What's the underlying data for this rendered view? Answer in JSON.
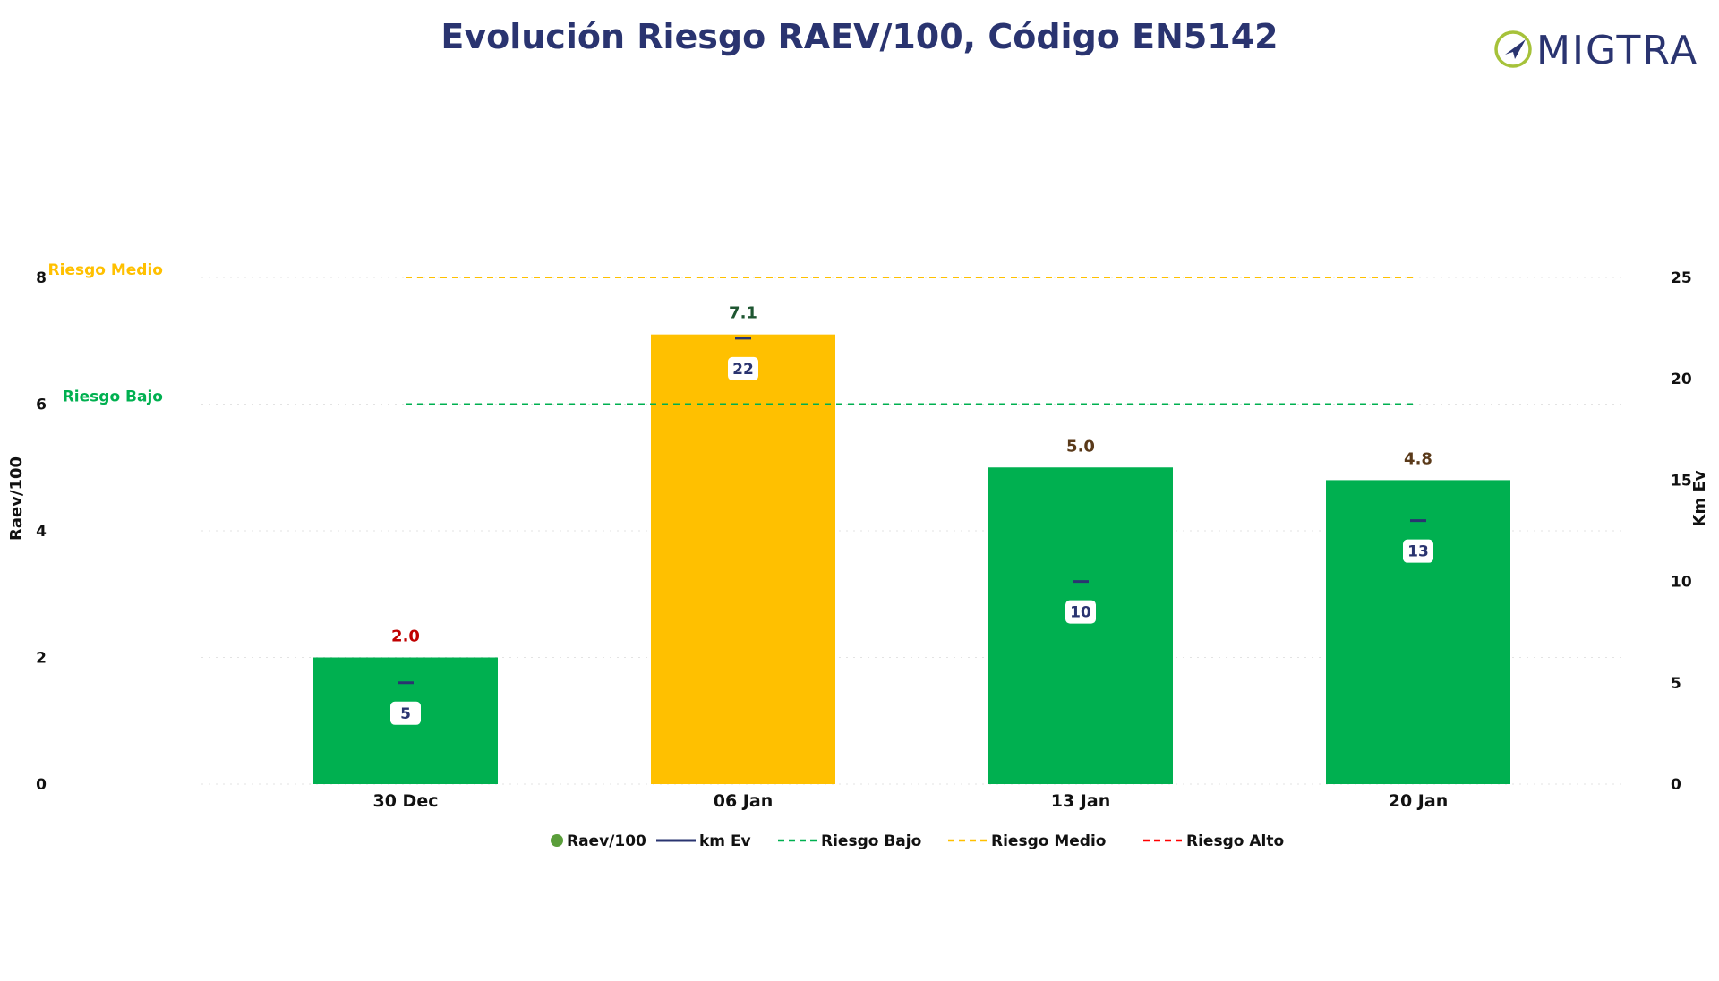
{
  "chart_data": {
    "type": "bar",
    "title": "Evolución Riesgo RAEV/100, Código EN5142",
    "categories": [
      "30 Dec",
      "06 Jan",
      "13 Jan",
      "20 Jan"
    ],
    "series": [
      {
        "name": "Raev/100",
        "axis": "left",
        "values": [
          2.0,
          7.1,
          5.0,
          4.8
        ],
        "labels": [
          "2.0",
          "7.1",
          "5.0",
          "4.8"
        ],
        "bar_colors": [
          "#00b050",
          "#ffc000",
          "#00b050",
          "#00b050"
        ],
        "label_colors": [
          "#c00000",
          "#1e5631",
          "#5a3a1a",
          "#5a3a1a"
        ]
      },
      {
        "name": "km Ev",
        "axis": "right",
        "values": [
          5,
          22,
          10,
          13
        ],
        "labels": [
          "5",
          "22",
          "10",
          "13"
        ],
        "color": "#2a3470"
      }
    ],
    "reference_lines": [
      {
        "name": "Riesgo Bajo",
        "value": 6,
        "color": "#00b050",
        "label": "Riesgo Bajo"
      },
      {
        "name": "Riesgo Medio",
        "value": 8,
        "color": "#ffc000",
        "label": "Riesgo Medio"
      }
    ],
    "ylabel": "Raev/100",
    "y2label": "Km Ev",
    "ylim": [
      0,
      8
    ],
    "y2lim": [
      0,
      25
    ],
    "yticks": [
      "0",
      "2",
      "4",
      "6",
      "8"
    ],
    "y2ticks": [
      "0",
      "5",
      "10",
      "15",
      "20",
      "25"
    ],
    "grid": true,
    "legend_position": "bottom",
    "legend": [
      {
        "label": "Raev/100",
        "kind": "dot",
        "color": "#5a9e3a"
      },
      {
        "label": "km Ev",
        "kind": "line",
        "color": "#2a3470"
      },
      {
        "label": "Riesgo Bajo",
        "kind": "dash",
        "color": "#00b050"
      },
      {
        "label": "Riesgo Medio",
        "kind": "dash",
        "color": "#ffc000"
      },
      {
        "label": "Riesgo Alto",
        "kind": "dash",
        "color": "#ff0000"
      }
    ]
  },
  "logo": {
    "text": "MIGTRA",
    "color": "#2a3470",
    "accent": "#a6c23a"
  }
}
